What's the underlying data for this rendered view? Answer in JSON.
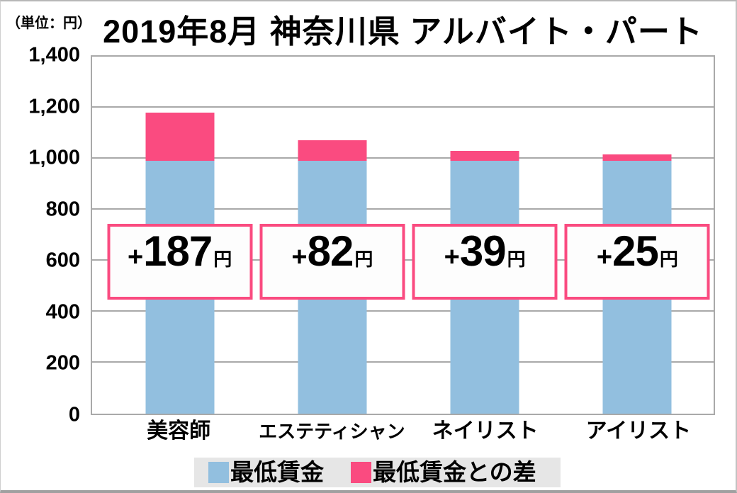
{
  "unit_label": "（単位：円）",
  "title": "2019年8月 神奈川県 アルバイト・パート",
  "chart_data": {
    "type": "bar",
    "stacked": true,
    "title": "2019年8月 神奈川県 アルバイト・パート",
    "unit": "円",
    "categories": [
      "美容師",
      "エステティシャン",
      "ネイリスト",
      "アイリスト"
    ],
    "series": [
      {
        "name": "最低賃金",
        "color": "#92bfdf",
        "values": [
          983,
          983,
          983,
          983
        ]
      },
      {
        "name": "最低賃金との差",
        "color": "#fa4b80",
        "values": [
          187,
          82,
          39,
          25
        ]
      }
    ],
    "totals": [
      1170,
      1065,
      1022,
      1008
    ],
    "annotations": [
      {
        "prefix": "+",
        "value": "187",
        "unit": "円"
      },
      {
        "prefix": "+",
        "value": "82",
        "unit": "円"
      },
      {
        "prefix": "+",
        "value": "39",
        "unit": "円"
      },
      {
        "prefix": "+",
        "value": "25",
        "unit": "円"
      }
    ],
    "ylim": [
      0,
      1400
    ],
    "ytick_interval": 200,
    "yticks": [
      "0",
      "200",
      "400",
      "600",
      "800",
      "1,000",
      "1,200",
      "1,400"
    ],
    "grid": true,
    "legend_position": "bottom"
  }
}
